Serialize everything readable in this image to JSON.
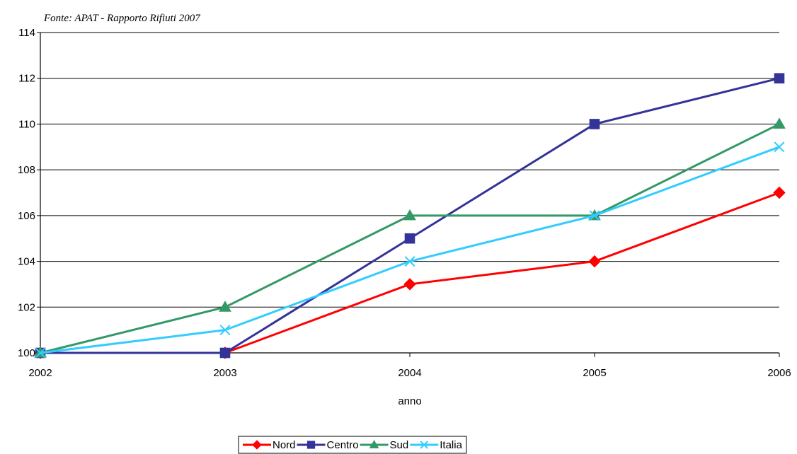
{
  "source": "Fonte: APAT - Rapporto Rifiuti 2007",
  "chart_data": {
    "type": "line",
    "title": "",
    "xlabel": "anno",
    "ylabel": "",
    "x": [
      2002,
      2003,
      2004,
      2005,
      2006
    ],
    "x_tick_labels": [
      "2002",
      "2003",
      "2004",
      "2005",
      "2006"
    ],
    "y_tick_labels": [
      "100",
      "102",
      "104",
      "106",
      "108",
      "110",
      "112",
      "114"
    ],
    "ylim": [
      100,
      114
    ],
    "grid": "horizontal",
    "legend_position": "bottom",
    "series": [
      {
        "name": "Nord",
        "color": "#ff0000",
        "marker": "diamond",
        "values": [
          100,
          100,
          103,
          104,
          107
        ]
      },
      {
        "name": "Centro",
        "color": "#333399",
        "marker": "square",
        "values": [
          100,
          100,
          105,
          110,
          112
        ]
      },
      {
        "name": "Sud",
        "color": "#339966",
        "marker": "triangle",
        "values": [
          100,
          102,
          106,
          106,
          110
        ]
      },
      {
        "name": "Italia",
        "color": "#33ccff",
        "marker": "cross",
        "values": [
          100,
          101,
          104,
          106,
          109
        ]
      }
    ]
  }
}
